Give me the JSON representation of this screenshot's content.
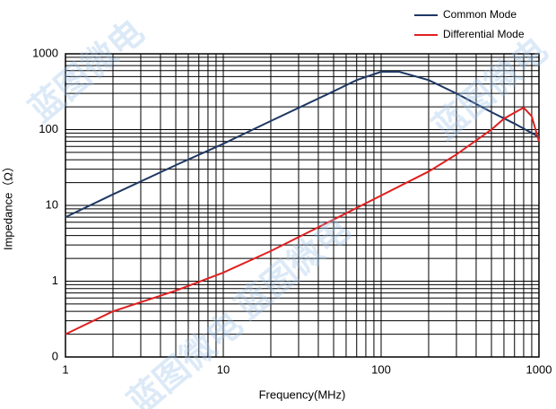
{
  "chart_data": {
    "type": "line",
    "x_label": "Frequency(MHz)",
    "y_label": "Impedance（Ω）",
    "watermark": "蓝图微电",
    "log_x": true,
    "log_y": true,
    "grid": true,
    "minor_grid": true,
    "legend": "top-right",
    "xlim": [
      1,
      1000
    ],
    "xticks": [
      1,
      10,
      100,
      1000
    ],
    "ylim": [
      0.1,
      1000
    ],
    "yticks": [
      {
        "value": 0.1,
        "label": "0"
      },
      1,
      10,
      100,
      1000
    ],
    "series": [
      {
        "name": "Common Mode",
        "color": "#1f3864",
        "x": [
          1,
          2,
          5,
          10,
          20,
          50,
          70,
          100,
          130,
          200,
          300,
          500,
          700,
          1000
        ],
        "values": [
          7,
          14,
          34,
          65,
          130,
          320,
          450,
          580,
          580,
          450,
          300,
          170,
          120,
          80
        ]
      },
      {
        "name": "Differential Mode",
        "color": "#e02020",
        "x": [
          1,
          2,
          5,
          10,
          20,
          50,
          100,
          200,
          300,
          500,
          600,
          800,
          900,
          1000
        ],
        "values": [
          0.2,
          0.4,
          0.75,
          1.3,
          2.5,
          6.5,
          13.5,
          28,
          47,
          100,
          140,
          195,
          150,
          70
        ]
      }
    ]
  }
}
